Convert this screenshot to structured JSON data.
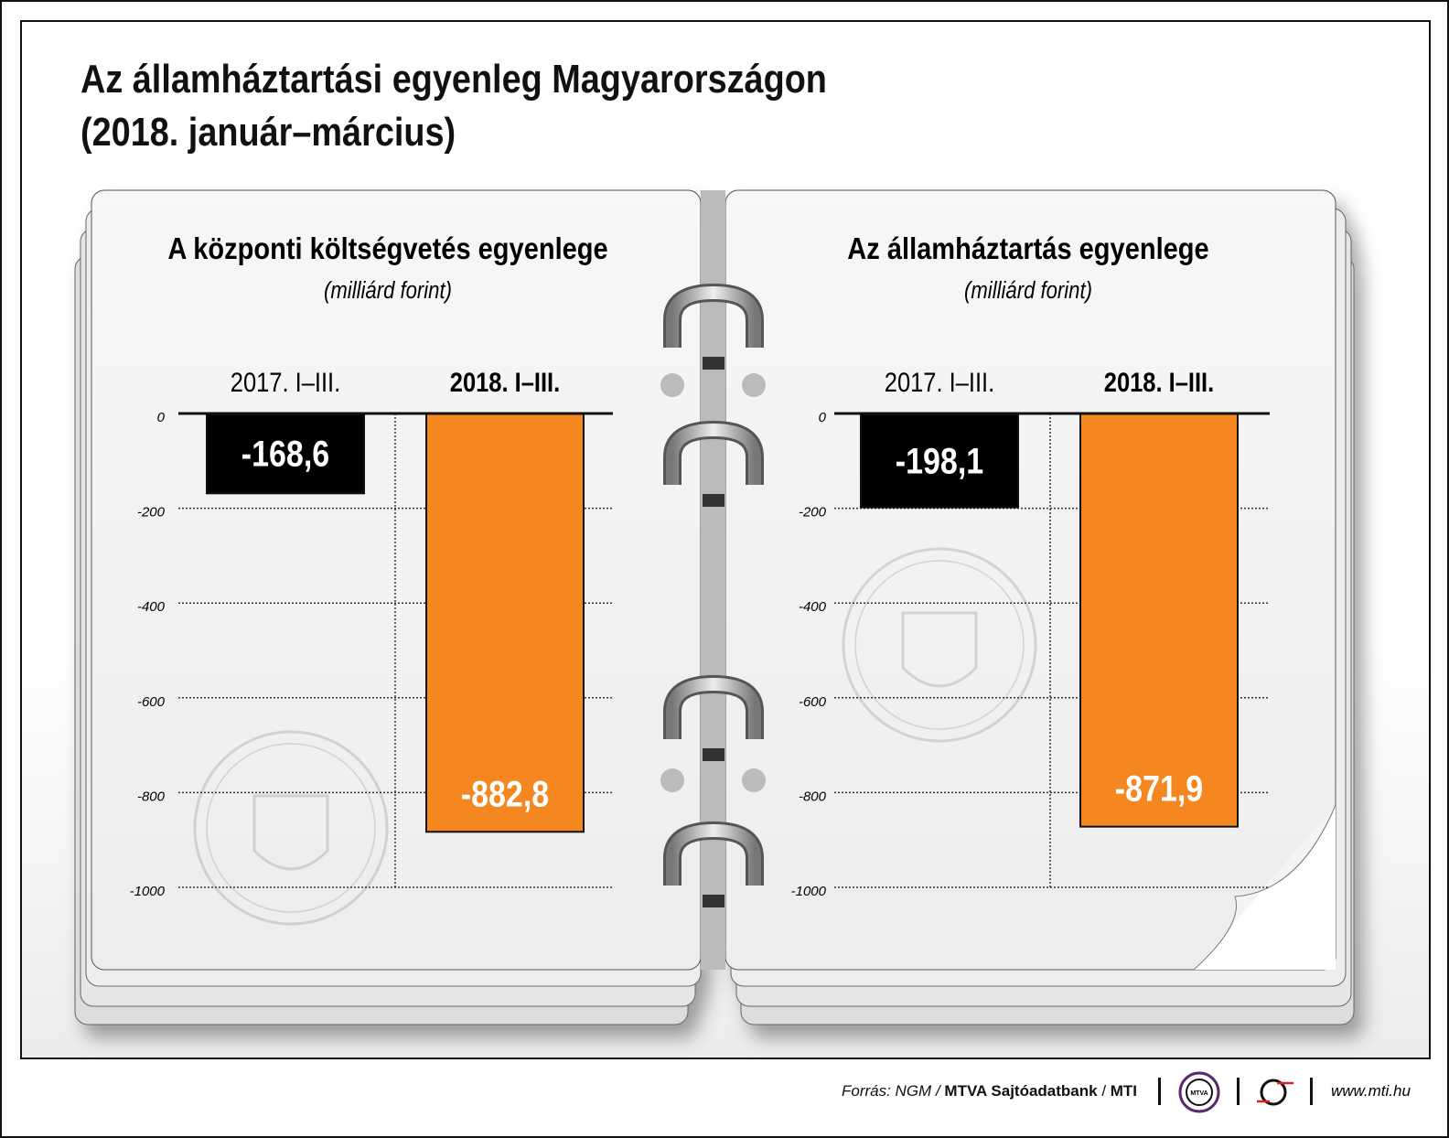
{
  "title_line1": "Az államháztartási egyenleg Magyarországon",
  "title_line2": "(2018. január–március)",
  "colors": {
    "bar_2017": "#000000",
    "bar_2018": "#f58720",
    "grid": "#333333"
  },
  "chart_data": [
    {
      "type": "bar",
      "title": "A központi költségvetés egyenlege",
      "subtitle": "(milliárd forint)",
      "categories": [
        "2017. I–III.",
        "2018. I–III."
      ],
      "values": [
        -168.6,
        -882.8
      ],
      "value_labels": [
        "-168,6",
        "-882,8"
      ],
      "ylim": [
        -1000,
        0
      ],
      "yticks": [
        0,
        -200,
        -400,
        -600,
        -800,
        -1000
      ],
      "grid": true
    },
    {
      "type": "bar",
      "title": "Az államháztartás egyenlege",
      "subtitle": "(milliárd forint)",
      "categories": [
        "2017. I–III.",
        "2018. I–III."
      ],
      "values": [
        -198.1,
        -871.9
      ],
      "value_labels": [
        "-198,1",
        "-871,9"
      ],
      "ylim": [
        -1000,
        0
      ],
      "yticks": [
        0,
        -200,
        -400,
        -600,
        -800,
        -1000
      ],
      "grid": true
    }
  ],
  "footer": {
    "source_prefix": "Forrás: NGM / ",
    "source_bold": "MTVA Sajtóadatbank",
    "source_sep": " / ",
    "source_mti": "MTI",
    "mtva_logo": "MTVA",
    "url": "www.mti.hu"
  }
}
